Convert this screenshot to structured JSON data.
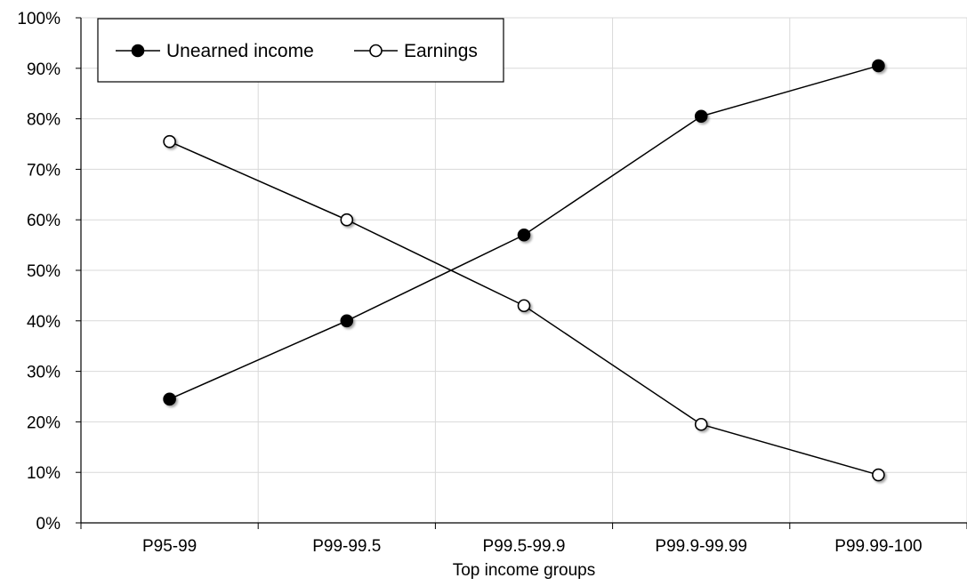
{
  "chart_data": {
    "type": "line",
    "categories": [
      "P95-99",
      "P99-99.5",
      "P99.5-99.9",
      "P99.9-99.99",
      "P99.99-100"
    ],
    "series": [
      {
        "name": "Unearned income",
        "values": [
          24.5,
          40,
          57,
          80.5,
          90.5
        ],
        "marker": "filled-circle",
        "color": "#000000"
      },
      {
        "name": "Earnings",
        "values": [
          75.5,
          60,
          43,
          19.5,
          9.5
        ],
        "marker": "open-circle",
        "color": "#000000"
      }
    ],
    "title": "",
    "xlabel": "Top income groups",
    "ylabel": "",
    "ylim": [
      0,
      100
    ],
    "yticks": [
      "0%",
      "10%",
      "20%",
      "30%",
      "40%",
      "50%",
      "60%",
      "70%",
      "80%",
      "90%",
      "100%"
    ],
    "grid": true,
    "legend_position": "top-left"
  }
}
